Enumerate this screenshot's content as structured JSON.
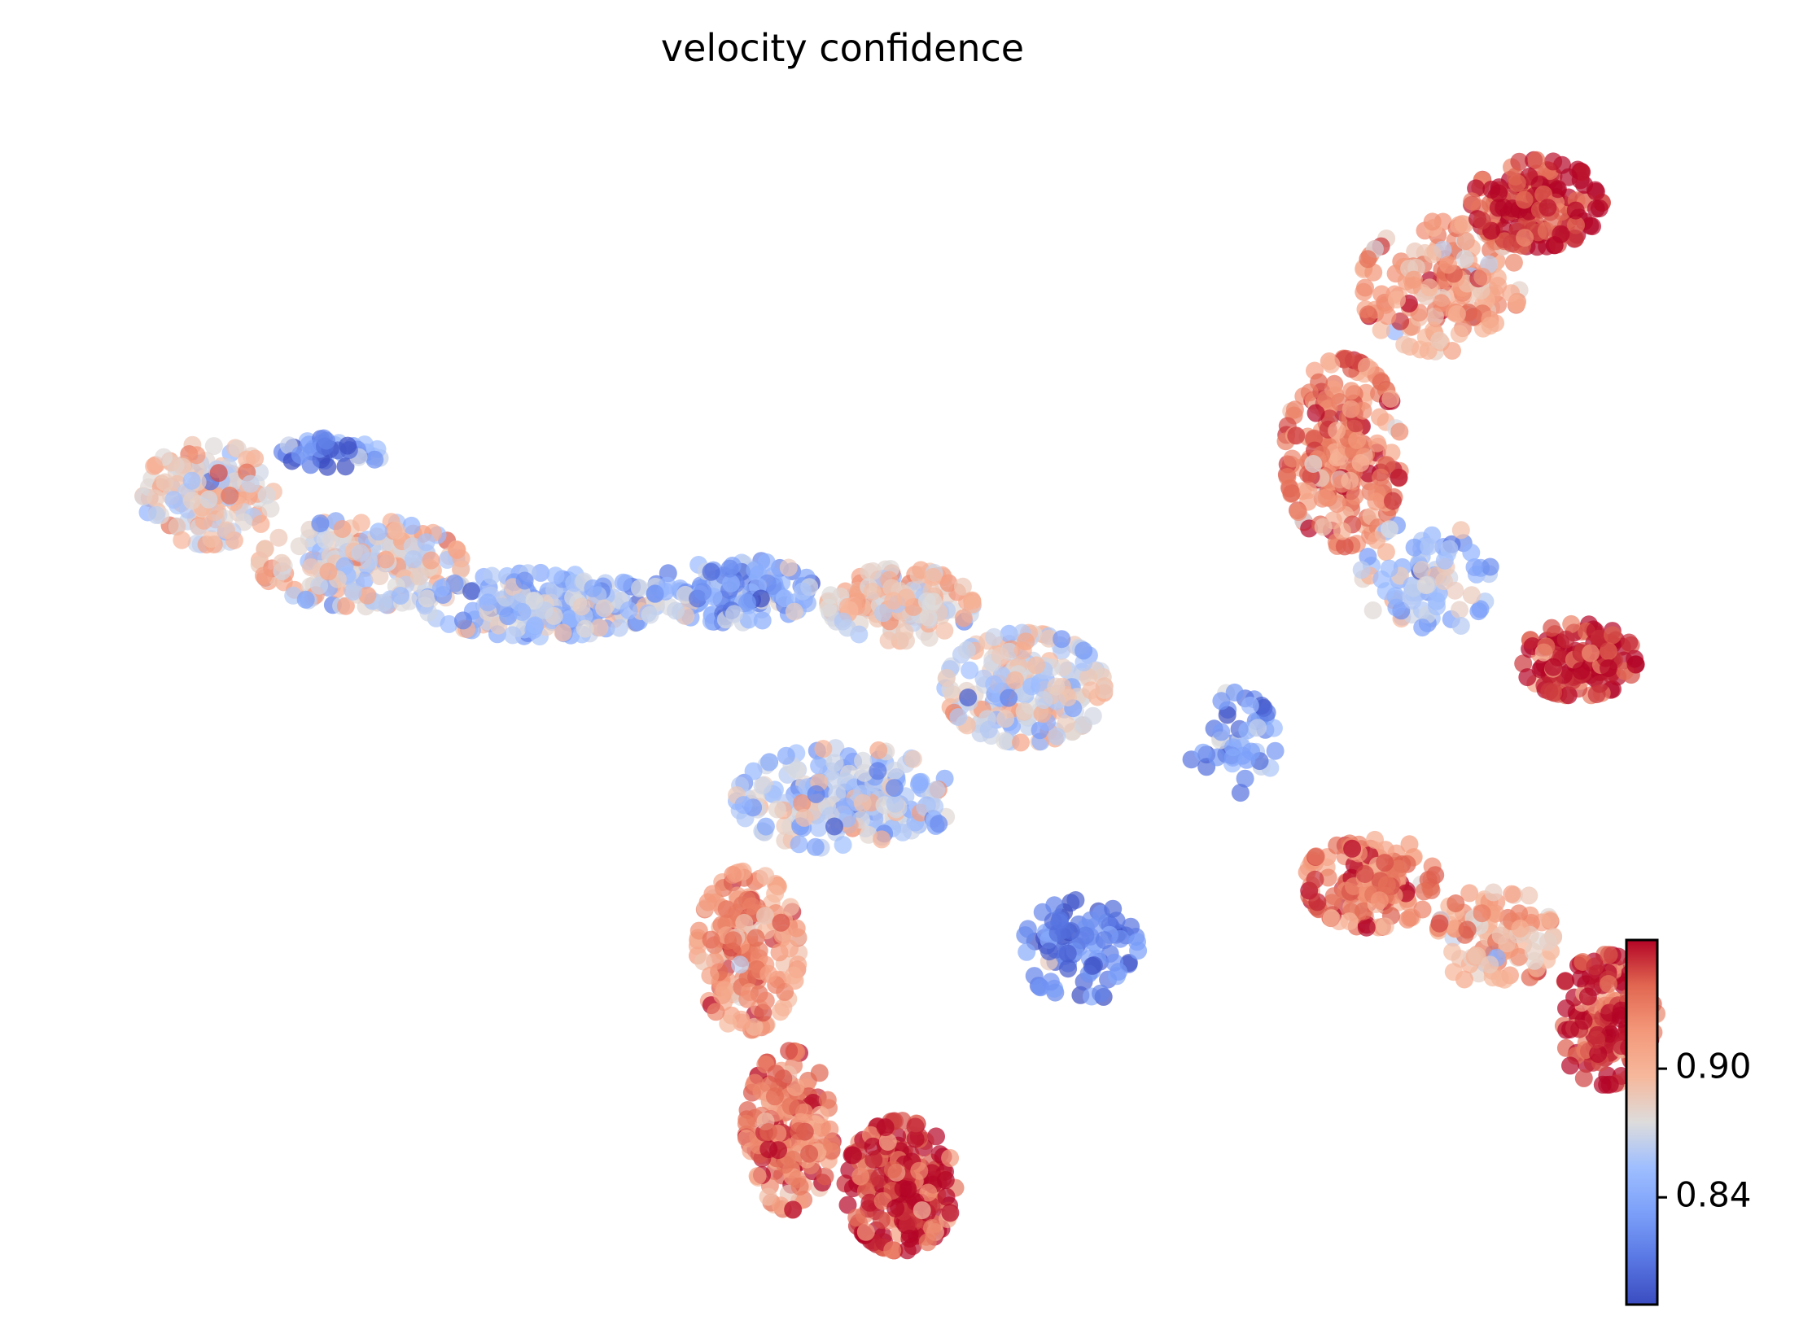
{
  "chart_data": {
    "type": "scatter",
    "title": "velocity confidence",
    "xlabel": "",
    "ylabel": "",
    "axes_visible": false,
    "grid": false,
    "colormap": "coolwarm",
    "alpha": 0.7,
    "colorbar": {
      "ticks": [
        0.84,
        0.9
      ],
      "tick_labels": [
        "0.84",
        "0.90"
      ],
      "range": [
        0.79,
        0.96
      ]
    },
    "clusters": [
      {
        "name": "",
        "center": [
          0.8,
          -3.1
        ],
        "spread": [
          0.45,
          0.35
        ],
        "count": 140,
        "mean_value": 0.885
      },
      {
        "name": "",
        "center": [
          1.9,
          -3.6
        ],
        "spread": [
          0.7,
          0.3
        ],
        "count": 200,
        "mean_value": 0.88
      },
      {
        "name": "",
        "center": [
          3.2,
          -3.9
        ],
        "spread": [
          0.8,
          0.22
        ],
        "count": 220,
        "mean_value": 0.852
      },
      {
        "name": "",
        "center": [
          4.6,
          -3.8
        ],
        "spread": [
          0.55,
          0.22
        ],
        "count": 150,
        "mean_value": 0.838
      },
      {
        "name": "",
        "center": [
          1.7,
          -2.8
        ],
        "spread": [
          0.35,
          0.1
        ],
        "count": 40,
        "mean_value": 0.828
      },
      {
        "name": "",
        "center": [
          5.8,
          -3.9
        ],
        "spread": [
          0.5,
          0.25
        ],
        "count": 160,
        "mean_value": 0.885
      },
      {
        "name": "",
        "center": [
          6.7,
          -4.5
        ],
        "spread": [
          0.55,
          0.38
        ],
        "count": 200,
        "mean_value": 0.87
      },
      {
        "name": "",
        "center": [
          5.4,
          -5.3
        ],
        "spread": [
          0.75,
          0.35
        ],
        "count": 220,
        "mean_value": 0.862
      },
      {
        "name": "",
        "center": [
          4.7,
          -6.4
        ],
        "spread": [
          0.35,
          0.55
        ],
        "count": 170,
        "mean_value": 0.915
      },
      {
        "name": "",
        "center": [
          5.0,
          -7.7
        ],
        "spread": [
          0.3,
          0.55
        ],
        "count": 180,
        "mean_value": 0.93
      },
      {
        "name": "",
        "center": [
          5.8,
          -8.1
        ],
        "spread": [
          0.38,
          0.45
        ],
        "count": 210,
        "mean_value": 0.95
      },
      {
        "name": "",
        "center": [
          7.1,
          -6.4
        ],
        "spread": [
          0.4,
          0.35
        ],
        "count": 90,
        "mean_value": 0.812
      },
      {
        "name": "",
        "center": [
          9.0,
          -2.8
        ],
        "spread": [
          0.4,
          0.65
        ],
        "count": 230,
        "mean_value": 0.925
      },
      {
        "name": "",
        "center": [
          9.7,
          -1.6
        ],
        "spread": [
          0.55,
          0.45
        ],
        "count": 170,
        "mean_value": 0.91
      },
      {
        "name": "",
        "center": [
          10.4,
          -1.0
        ],
        "spread": [
          0.45,
          0.3
        ],
        "count": 160,
        "mean_value": 0.955
      },
      {
        "name": "",
        "center": [
          9.6,
          -3.7
        ],
        "spread": [
          0.45,
          0.4
        ],
        "count": 90,
        "mean_value": 0.858
      },
      {
        "name": "",
        "center": [
          10.7,
          -4.3
        ],
        "spread": [
          0.4,
          0.25
        ],
        "count": 130,
        "mean_value": 0.95
      },
      {
        "name": "",
        "center": [
          8.2,
          -4.9
        ],
        "spread": [
          0.3,
          0.35
        ],
        "count": 50,
        "mean_value": 0.83
      },
      {
        "name": "",
        "center": [
          9.2,
          -5.9
        ],
        "spread": [
          0.45,
          0.32
        ],
        "count": 160,
        "mean_value": 0.93
      },
      {
        "name": "",
        "center": [
          10.1,
          -6.3
        ],
        "spread": [
          0.4,
          0.35
        ],
        "count": 110,
        "mean_value": 0.905
      },
      {
        "name": "",
        "center": [
          10.9,
          -6.9
        ],
        "spread": [
          0.35,
          0.45
        ],
        "count": 150,
        "mean_value": 0.95
      }
    ]
  }
}
